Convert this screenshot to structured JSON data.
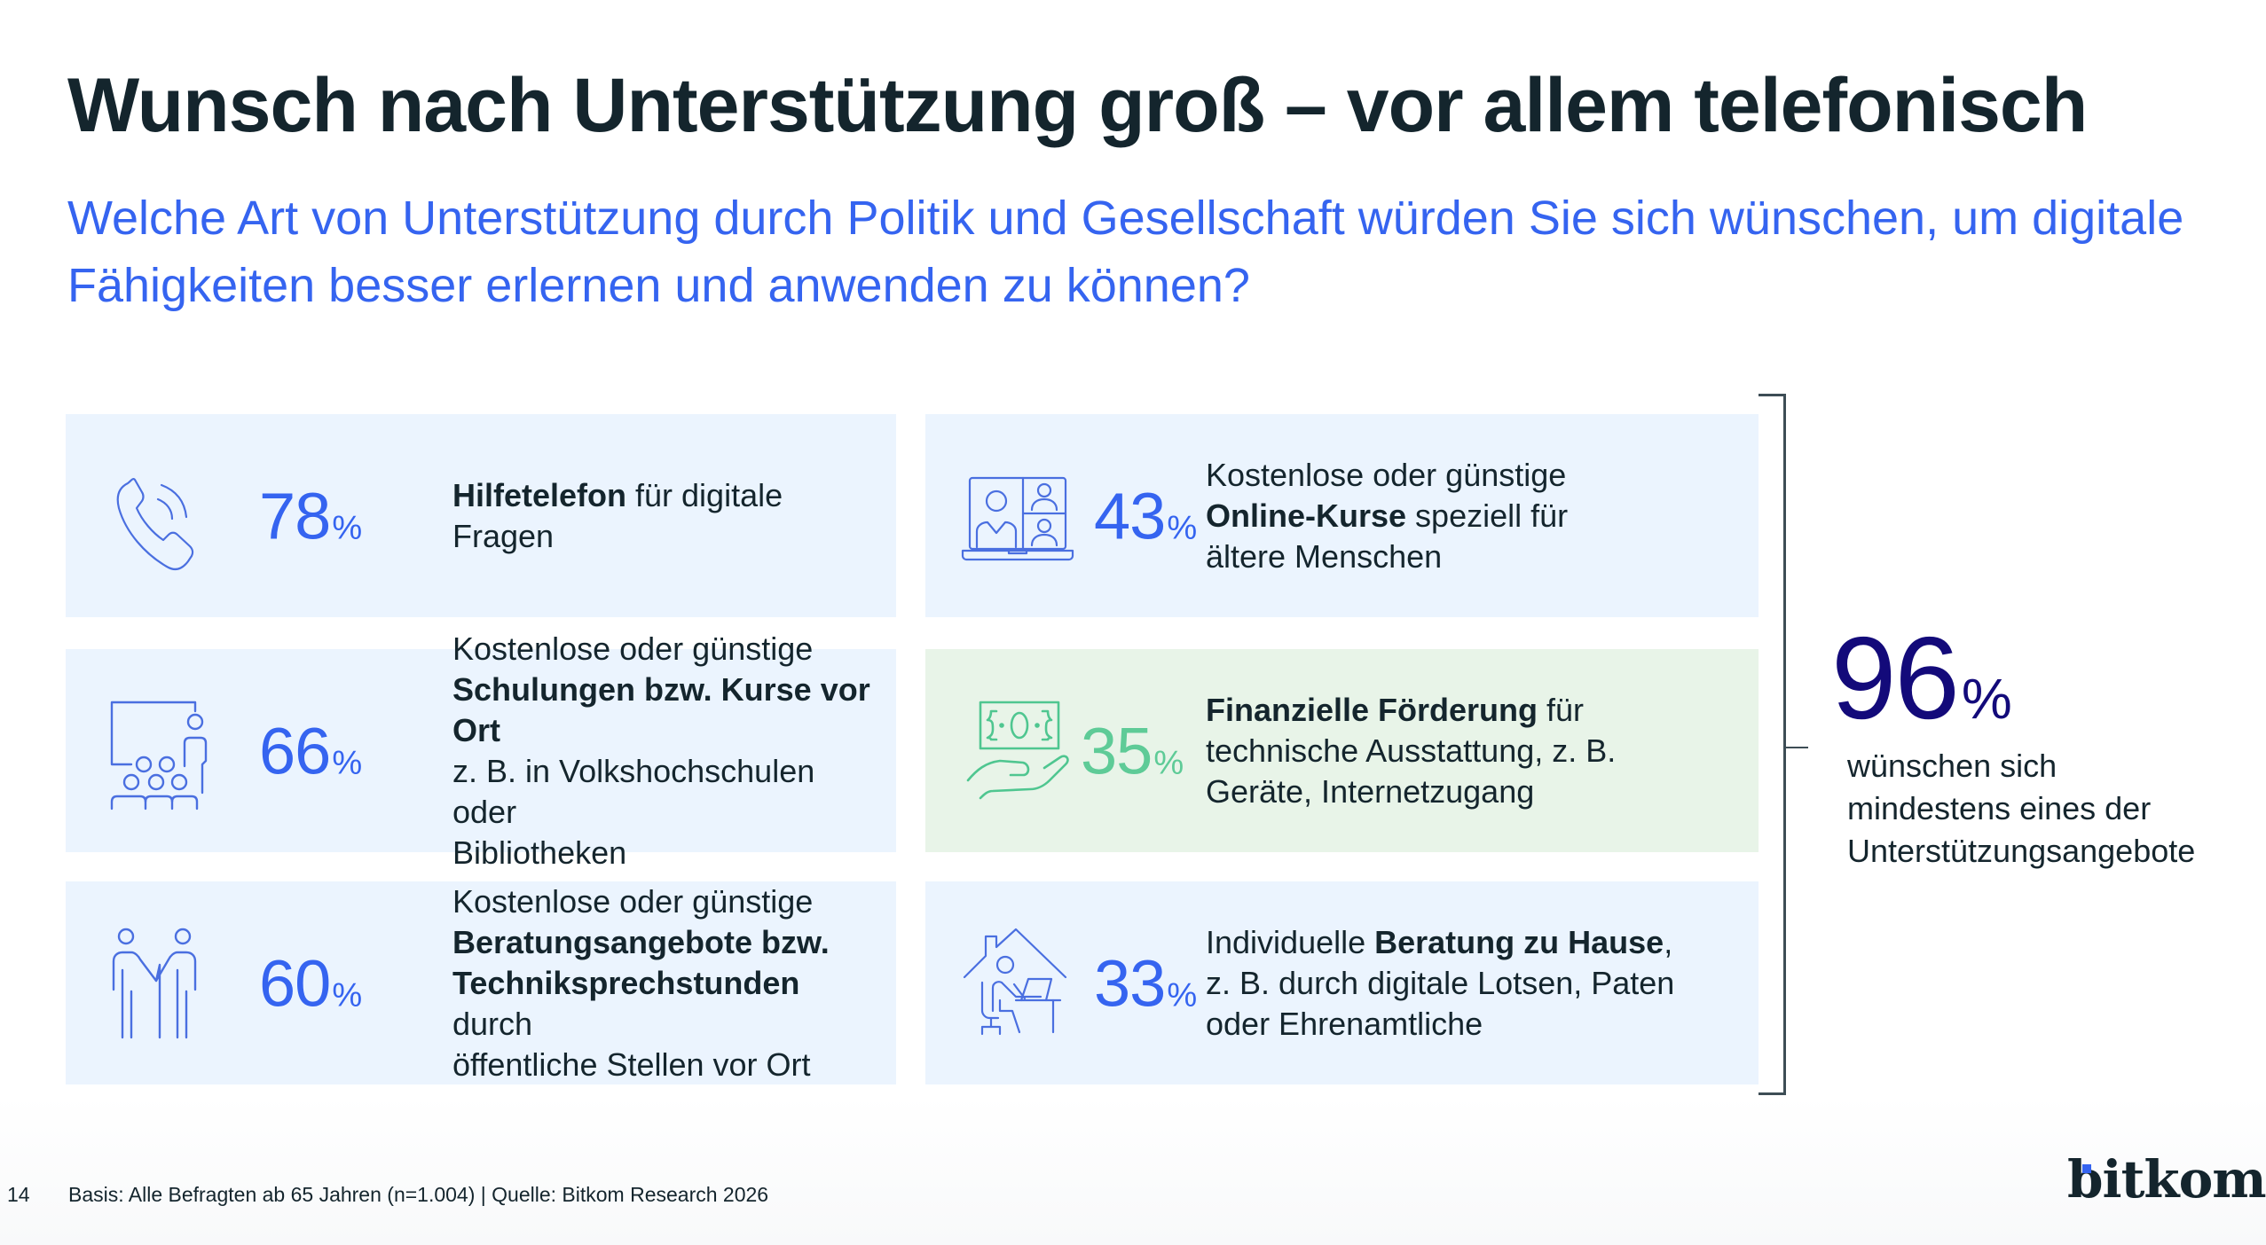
{
  "header": {
    "title": "Wunsch nach Unterstützung groß – vor allem telefonisch",
    "subtitle": "Welche Art von Unterstützung durch Politik und Gesellschaft würden Sie sich wünschen, um digitale Fähigkeiten besser erlernen und anwenden zu können?"
  },
  "colors": {
    "accent_blue": "#3564f0",
    "accent_green": "#5ecb97",
    "summary_navy": "#130a7a",
    "card_blue_bg": "#ebf4fe",
    "card_green_bg": "#e8f4e8",
    "text_dark": "#14252d"
  },
  "cards": [
    {
      "icon": "phone-icon",
      "value": "78",
      "unit": "%",
      "lines": [
        [
          {
            "t": "Hilfetelefon",
            "b": true
          },
          {
            "t": " für digitale",
            "b": false
          }
        ],
        [
          {
            "t": "Fragen",
            "b": false
          }
        ]
      ]
    },
    {
      "icon": "video-call-laptop-icon",
      "value": "43",
      "unit": "%",
      "lines": [
        [
          {
            "t": "Kostenlose oder günstige",
            "b": false
          }
        ],
        [
          {
            "t": "Online-Kurse",
            "b": true
          },
          {
            "t": " speziell für",
            "b": false
          }
        ],
        [
          {
            "t": "ältere Menschen",
            "b": false
          }
        ]
      ]
    },
    {
      "icon": "classroom-icon",
      "value": "66",
      "unit": "%",
      "lines": [
        [
          {
            "t": "Kostenlose oder günstige",
            "b": false
          }
        ],
        [
          {
            "t": "Schulungen bzw. Kurse vor Ort",
            "b": true
          }
        ],
        [
          {
            "t": "z. B. in Volkshochschulen oder",
            "b": false
          }
        ],
        [
          {
            "t": "Bibliotheken",
            "b": false
          }
        ]
      ]
    },
    {
      "icon": "money-hand-icon",
      "value": "35",
      "unit": "%",
      "highlight": "green",
      "lines": [
        [
          {
            "t": "Finanzielle Förderung",
            "b": true
          },
          {
            "t": " für",
            "b": false
          }
        ],
        [
          {
            "t": "technische Ausstattung, z. B.",
            "b": false
          }
        ],
        [
          {
            "t": "Geräte, Internetzugang",
            "b": false
          }
        ]
      ]
    },
    {
      "icon": "handshake-people-icon",
      "value": "60",
      "unit": "%",
      "lines": [
        [
          {
            "t": "Kostenlose oder günstige",
            "b": false
          }
        ],
        [
          {
            "t": "Beratungsangebote bzw.",
            "b": true
          }
        ],
        [
          {
            "t": "Techniksprechstunden",
            "b": true
          },
          {
            "t": " durch",
            "b": false
          }
        ],
        [
          {
            "t": "öffentliche Stellen vor Ort",
            "b": false
          }
        ]
      ]
    },
    {
      "icon": "home-office-icon",
      "value": "33",
      "unit": "%",
      "lines": [
        [
          {
            "t": "Individuelle ",
            "b": false
          },
          {
            "t": "Beratung zu Hause",
            "b": true
          },
          {
            "t": ",",
            "b": false
          }
        ],
        [
          {
            "t": "z. B. durch digitale Lotsen, Paten",
            "b": false
          }
        ],
        [
          {
            "t": "oder Ehrenamtliche",
            "b": false
          }
        ]
      ]
    }
  ],
  "summary": {
    "value": "96",
    "unit": "%",
    "lines": [
      "wünschen sich",
      "mindestens eines der",
      "Unterstützungsangebote"
    ]
  },
  "footer": {
    "page_number": "14",
    "source": "Basis: Alle Befragten ab 65 Jahren (n=1.004) | Quelle: Bitkom Research 2026",
    "logo": "bitkom"
  }
}
